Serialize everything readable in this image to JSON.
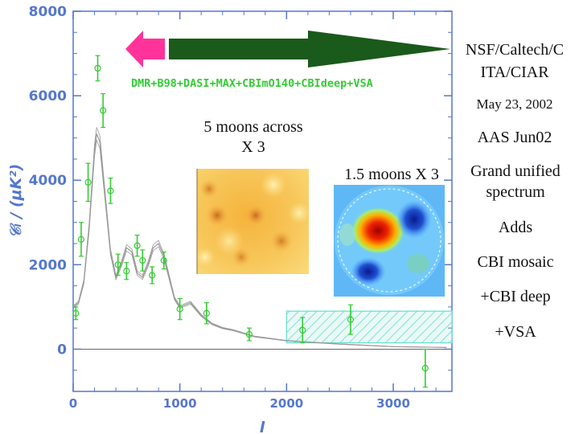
{
  "chart_data": {
    "type": "scatter",
    "title": "",
    "xlabel": "l",
    "ylabel": "𝒞ₗ / (μK²)",
    "xlim": [
      0,
      3550
    ],
    "ylim": [
      -1000,
      8000
    ],
    "xticks": [
      0,
      1000,
      2000,
      3000
    ],
    "yticks": [
      0,
      2000,
      4000,
      6000,
      8000
    ],
    "legend": "DMR+B98+DASI+MAX+CBImO140+CBIdeep+VSA",
    "series": [
      {
        "name": "band powers",
        "x": [
          25,
          75,
          140,
          230,
          280,
          350,
          420,
          500,
          600,
          650,
          740,
          850,
          1000,
          1250,
          1650,
          2150,
          2600,
          3300
        ],
        "y": [
          850,
          2600,
          3950,
          6650,
          5650,
          3750,
          2000,
          1850,
          2450,
          2100,
          1750,
          2100,
          950,
          850,
          350,
          450,
          700,
          -450
        ],
        "yerr": [
          150,
          400,
          450,
          300,
          400,
          300,
          250,
          200,
          250,
          250,
          200,
          200,
          250,
          250,
          150,
          300,
          350,
          450
        ]
      },
      {
        "name": "model",
        "x": [
          0,
          50,
          100,
          150,
          200,
          220,
          250,
          300,
          350,
          400,
          450,
          500,
          550,
          600,
          650,
          700,
          750,
          800,
          850,
          900,
          950,
          1000,
          1100,
          1200,
          1300,
          1400,
          1500,
          1700,
          2000,
          2500,
          3000,
          3500
        ],
        "y": [
          1000,
          1100,
          1600,
          2900,
          4700,
          5100,
          4900,
          3600,
          2300,
          1700,
          2000,
          2400,
          2300,
          1800,
          1700,
          2000,
          2400,
          2500,
          2200,
          1700,
          1200,
          1000,
          1100,
          800,
          600,
          500,
          450,
          300,
          200,
          120,
          60,
          40
        ]
      }
    ],
    "excess_band": {
      "x_range": [
        2000,
        3550
      ],
      "y_range": [
        150,
        900
      ]
    }
  },
  "annotations": {
    "organization": [
      "NSF/Caltech/C",
      "ITA/CIAR"
    ],
    "date": "May 23, 2002",
    "meeting": "AAS Jun02",
    "panel_left_caption": [
      "5 moons across",
      "X 3"
    ],
    "panel_right_caption": "1.5 moons X 3",
    "notes": [
      "Grand unified",
      "spectrum",
      "Adds",
      "CBI mosaic",
      "+CBI deep",
      "+VSA"
    ]
  },
  "colors": {
    "axis": "#5577cc",
    "points": "#33cc33",
    "model": "#999999",
    "excess_band": "#66ddcc",
    "arrow_green": "#1a5a1a",
    "arrow_pink": "#ff3399"
  }
}
